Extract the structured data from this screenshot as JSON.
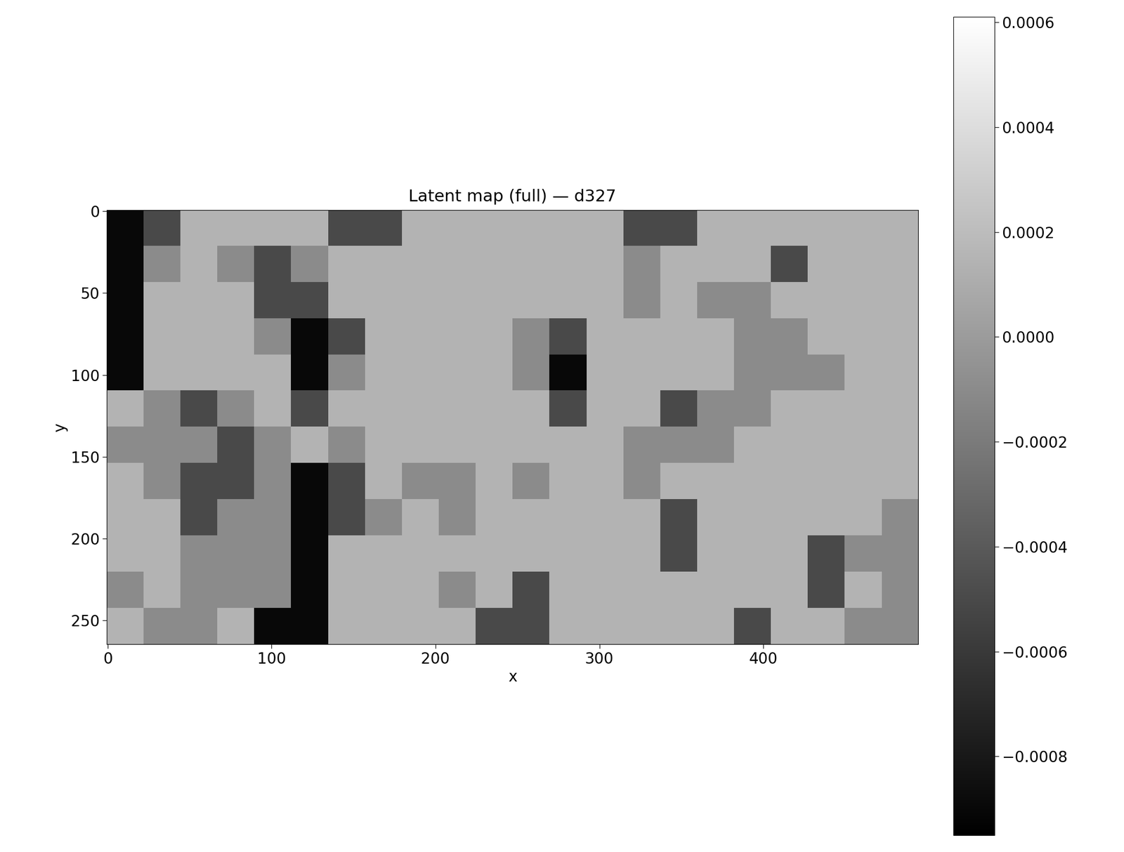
{
  "chart_data": {
    "type": "heatmap",
    "title": "Latent map (full) — d327",
    "x_label": "x",
    "y_label": "y",
    "color": "gray",
    "xlim": [
      -0.5,
      494.5
    ],
    "ylim": [
      264.5,
      -0.5
    ],
    "xticks": [
      0,
      100,
      200,
      300,
      400
    ],
    "yticks": [
      0,
      50,
      100,
      150,
      200,
      250
    ],
    "cells": [
      [
        -0.0009,
        -0.0005,
        0.00015,
        0.00015,
        0.00015,
        0.00015,
        -0.0005,
        -0.0005,
        0.00015,
        0.00015,
        0.00015,
        0.00015,
        0.00015,
        0.00015,
        -0.0005,
        -0.0005,
        0.00015,
        0.00015,
        0.00015,
        0.00015,
        0.00015,
        0.00015
      ],
      [
        -0.0009,
        -0.0001,
        0.00015,
        -0.0001,
        -0.0005,
        -0.0001,
        0.00015,
        0.00015,
        0.00015,
        0.00015,
        0.00015,
        0.00015,
        0.00015,
        0.00015,
        -0.0001,
        0.00015,
        0.00015,
        0.00015,
        -0.0005,
        0.00015,
        0.00015,
        0.00015
      ],
      [
        -0.0009,
        0.00015,
        0.00015,
        0.00015,
        -0.0005,
        -0.0005,
        0.00015,
        0.00015,
        0.00015,
        0.00015,
        0.00015,
        0.00015,
        0.00015,
        0.00015,
        -0.0001,
        0.00015,
        -0.0001,
        -0.0001,
        0.00015,
        0.00015,
        0.00015,
        0.00015
      ],
      [
        -0.0009,
        0.00015,
        0.00015,
        0.00015,
        -0.0001,
        -0.0009,
        -0.0005,
        0.00015,
        0.00015,
        0.00015,
        0.00015,
        -0.0001,
        -0.0005,
        0.00015,
        0.00015,
        0.00015,
        0.00015,
        -0.0001,
        -0.0001,
        0.00015,
        0.00015,
        0.00015
      ],
      [
        -0.0009,
        0.00015,
        0.00015,
        0.00015,
        0.00015,
        -0.0009,
        -0.0001,
        0.00015,
        0.00015,
        0.00015,
        0.00015,
        -0.0001,
        -0.0009,
        0.00015,
        0.00015,
        0.00015,
        0.00015,
        -0.0001,
        -0.0001,
        -0.0001,
        0.00015,
        0.00015
      ],
      [
        0.00015,
        -0.0001,
        -0.0005,
        -0.0001,
        0.00015,
        -0.0005,
        0.00015,
        0.00015,
        0.00015,
        0.00015,
        0.00015,
        0.00015,
        -0.0005,
        0.00015,
        0.00015,
        -0.0005,
        -0.0001,
        -0.0001,
        0.00015,
        0.00015,
        0.00015,
        0.00015
      ],
      [
        -0.0001,
        -0.0001,
        -0.0001,
        -0.0005,
        -0.0001,
        0.00015,
        -0.0001,
        0.00015,
        0.00015,
        0.00015,
        0.00015,
        0.00015,
        0.00015,
        0.00015,
        -0.0001,
        -0.0001,
        -0.0001,
        0.00015,
        0.00015,
        0.00015,
        0.00015,
        0.00015
      ],
      [
        0.00015,
        -0.0001,
        -0.0005,
        -0.0005,
        -0.0001,
        -0.0009,
        -0.0005,
        0.00015,
        -0.0001,
        -0.0001,
        0.00015,
        -0.0001,
        0.00015,
        0.00015,
        -0.0001,
        0.00015,
        0.00015,
        0.00015,
        0.00015,
        0.00015,
        0.00015,
        0.00015
      ],
      [
        0.00015,
        0.00015,
        -0.0005,
        -0.0001,
        -0.0001,
        -0.0009,
        -0.0005,
        -0.0001,
        0.00015,
        -0.0001,
        0.00015,
        0.00015,
        0.00015,
        0.00015,
        0.00015,
        -0.0005,
        0.00015,
        0.00015,
        0.00015,
        0.00015,
        0.00015,
        -0.0001
      ],
      [
        0.00015,
        0.00015,
        -0.0001,
        -0.0001,
        -0.0001,
        -0.0009,
        0.00015,
        0.00015,
        0.00015,
        0.00015,
        0.00015,
        0.00015,
        0.00015,
        0.00015,
        0.00015,
        -0.0005,
        0.00015,
        0.00015,
        0.00015,
        -0.0005,
        -0.0001,
        -0.0001
      ],
      [
        -0.0001,
        0.00015,
        -0.0001,
        -0.0001,
        -0.0001,
        -0.0009,
        0.00015,
        0.00015,
        0.00015,
        -0.0001,
        0.00015,
        -0.0005,
        0.00015,
        0.00015,
        0.00015,
        0.00015,
        0.00015,
        0.00015,
        0.00015,
        -0.0005,
        0.00015,
        -0.0001
      ],
      [
        0.00015,
        -0.0001,
        -0.0001,
        0.00015,
        -0.0009,
        -0.0009,
        0.00015,
        0.00015,
        0.00015,
        0.00015,
        -0.0005,
        -0.0005,
        0.00015,
        0.00015,
        0.00015,
        0.00015,
        0.00015,
        -0.0005,
        0.00015,
        0.00015,
        -0.0001,
        -0.0001
      ]
    ],
    "colorbar": {
      "range": [
        -0.00095,
        0.00061
      ],
      "ticks": [
        {
          "value": 0.0006,
          "label": "0.0006"
        },
        {
          "value": 0.0004,
          "label": "0.0004"
        },
        {
          "value": 0.0002,
          "label": "0.0002"
        },
        {
          "value": 0.0,
          "label": "0.0000"
        },
        {
          "value": -0.0002,
          "label": "−0.0002"
        },
        {
          "value": -0.0004,
          "label": "−0.0004"
        },
        {
          "value": -0.0006,
          "label": "−0.0006"
        },
        {
          "value": -0.0008,
          "label": "−0.0008"
        }
      ]
    }
  }
}
